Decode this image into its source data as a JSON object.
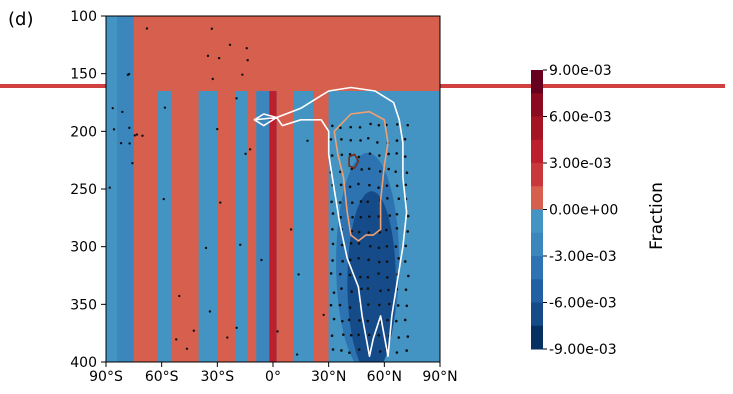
{
  "panel_label": "(d)",
  "chart_data": {
    "type": "heatmap",
    "title": "",
    "xlabel": "",
    "ylabel": "",
    "x_ticks": [
      "90°S",
      "60°S",
      "30°S",
      "0°",
      "30°N",
      "60°N",
      "90°N"
    ],
    "x_tick_values": [
      -90,
      -60,
      -30,
      0,
      30,
      60,
      90
    ],
    "xlim": [
      -90,
      90
    ],
    "y_ticks": [
      "100",
      "150",
      "200",
      "250",
      "300",
      "350",
      "400"
    ],
    "y_tick_values": [
      100,
      150,
      200,
      250,
      300,
      350,
      400
    ],
    "ylim": [
      400,
      100
    ],
    "y_inverted": true,
    "colorbar": {
      "label": "Fraction",
      "range": [
        -0.009,
        0.009
      ],
      "tick_labels": [
        "9.00e-03",
        "6.00e-03",
        "3.00e-03",
        "0.00e+00",
        "-3.00e-03",
        "-6.00e-03",
        "-9.00e-03"
      ],
      "tick_values": [
        0.009,
        0.006,
        0.003,
        0.0,
        -0.003,
        -0.006,
        -0.009
      ],
      "levels": [
        {
          "from": 0.0075,
          "to": 0.009,
          "color": "#67001f"
        },
        {
          "from": 0.006,
          "to": 0.0075,
          "color": "#8b0a1f"
        },
        {
          "from": 0.0045,
          "to": 0.006,
          "color": "#a51422"
        },
        {
          "from": 0.003,
          "to": 0.0045,
          "color": "#bd1f2d"
        },
        {
          "from": 0.0015,
          "to": 0.003,
          "color": "#c8383a"
        },
        {
          "from": 0.0,
          "to": 0.0015,
          "color": "#d6604d"
        },
        {
          "from": -0.0015,
          "to": 0.0,
          "color": "#4393c3"
        },
        {
          "from": -0.003,
          "to": -0.0015,
          "color": "#3b86bd"
        },
        {
          "from": -0.0045,
          "to": -0.003,
          "color": "#2d72b1"
        },
        {
          "from": -0.006,
          "to": -0.0045,
          "color": "#235fa3"
        },
        {
          "from": -0.0075,
          "to": -0.006,
          "color": "#164b8a"
        },
        {
          "from": -0.009,
          "to": -0.0075,
          "color": "#053061"
        }
      ]
    },
    "field_columns": [
      {
        "lat": [
          -90,
          -84
        ],
        "value": -0.001
      },
      {
        "lat": [
          -84,
          -75
        ],
        "value": -0.002
      },
      {
        "lat": [
          -75,
          -62
        ],
        "value": 0.001
      },
      {
        "lat": [
          -62,
          -55
        ],
        "value": -0.001
      },
      {
        "lat": [
          -55,
          -40
        ],
        "value": 0.001
      },
      {
        "lat": [
          -40,
          -30
        ],
        "value": -0.001
      },
      {
        "lat": [
          -30,
          -20
        ],
        "value": 0.001
      },
      {
        "lat": [
          -20,
          -14
        ],
        "value": -0.001
      },
      {
        "lat": [
          -14,
          -9
        ],
        "value": 0.001
      },
      {
        "lat": [
          -9,
          -2
        ],
        "value": -0.002
      },
      {
        "lat": [
          -2,
          2
        ],
        "value": 0.004
      },
      {
        "lat": [
          2,
          11
        ],
        "value": 0.001
      },
      {
        "lat": [
          11,
          22
        ],
        "value": -0.001
      },
      {
        "lat": [
          22,
          30
        ],
        "value": 0.001
      },
      {
        "lat": [
          30,
          40
        ],
        "value": -0.001
      },
      {
        "lat": [
          40,
          65
        ],
        "value": -0.0015
      },
      {
        "lat": [
          65,
          90
        ],
        "value": -0.001
      }
    ],
    "upper_band": {
      "pressure": [
        100,
        165
      ],
      "lat": [
        -75,
        90
      ],
      "value": 0.001
    },
    "nh_anomaly_core": {
      "lat": [
        34,
        68
      ],
      "pressure": [
        210,
        400
      ],
      "value": -0.0065
    },
    "contours": [
      {
        "color": "#ffffff",
        "description": "outer contour",
        "points": [
          [
            -10,
            190
          ],
          [
            -5,
            185
          ],
          [
            2,
            188
          ],
          [
            -5,
            195
          ],
          [
            -10,
            190
          ],
          [
            2,
            188
          ],
          [
            15,
            180
          ],
          [
            25,
            170
          ],
          [
            30,
            165
          ],
          [
            42,
            162
          ],
          [
            55,
            165
          ],
          [
            65,
            175
          ],
          [
            68,
            190
          ],
          [
            70,
            210
          ],
          [
            70,
            240
          ],
          [
            72,
            270
          ],
          [
            70,
            300
          ],
          [
            67,
            330
          ],
          [
            64,
            360
          ],
          [
            62,
            395
          ],
          [
            58,
            360
          ],
          [
            54,
            380
          ],
          [
            52,
            395
          ],
          [
            48,
            360
          ],
          [
            46,
            335
          ],
          [
            40,
            310
          ],
          [
            36,
            280
          ],
          [
            33,
            250
          ],
          [
            30,
            220
          ],
          [
            30,
            200
          ],
          [
            26,
            190
          ],
          [
            15,
            190
          ],
          [
            5,
            195
          ],
          [
            2,
            188
          ]
        ]
      },
      {
        "color": "#f0a070",
        "description": "inner contour",
        "points": [
          [
            33,
            200
          ],
          [
            42,
            185
          ],
          [
            52,
            183
          ],
          [
            60,
            190
          ],
          [
            62,
            210
          ],
          [
            60,
            230
          ],
          [
            58,
            260
          ],
          [
            58,
            285
          ],
          [
            54,
            290
          ],
          [
            50,
            290
          ],
          [
            46,
            295
          ],
          [
            42,
            290
          ],
          [
            40,
            270
          ],
          [
            38,
            240
          ],
          [
            35,
            220
          ],
          [
            33,
            200
          ]
        ]
      },
      {
        "color": "#7a2a18",
        "description": "small closed contour",
        "points": [
          [
            41,
            222
          ],
          [
            44,
            220
          ],
          [
            46,
            226
          ],
          [
            44,
            232
          ],
          [
            41,
            230
          ],
          [
            41,
            222
          ]
        ]
      }
    ],
    "stippling": "black dots mark significance, concentrated over 30°N–75°N and 190–400 hPa, scattered elsewhere"
  }
}
